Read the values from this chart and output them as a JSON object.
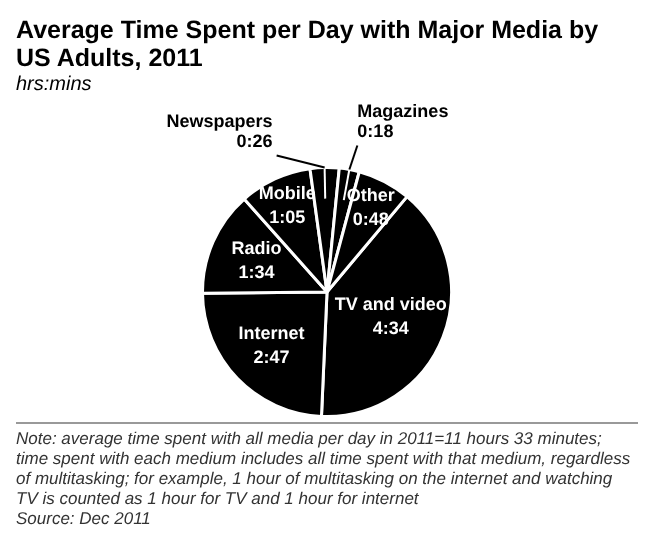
{
  "chart_data": {
    "type": "pie",
    "title": "Average Time Spent per Day with Major Media by US Adults, 2011",
    "subtitle": "hrs:mins",
    "categories": [
      "TV and video",
      "Internet",
      "Radio",
      "Mobile",
      "Newspapers",
      "Magazines",
      "Other"
    ],
    "values": [
      274,
      167,
      94,
      65,
      26,
      18,
      48
    ],
    "value_labels": [
      "4:34",
      "2:47",
      "1:34",
      "1:05",
      "0:26",
      "0:18",
      "0:48"
    ],
    "colors": [
      "#000000",
      "#000000",
      "#000000",
      "#000000",
      "#000000",
      "#000000",
      "#000000"
    ],
    "annotations": [
      "Note: average time spent with all media per day in 2011=11 hours 33 minutes; time spent with each medium includes all time spent with that medium, regardless of multitasking; for example, 1 hour of multitasking on the internet and watching TV is counted as 1 hour for TV and 1 hour for internet",
      "Source: Dec 2011"
    ]
  }
}
